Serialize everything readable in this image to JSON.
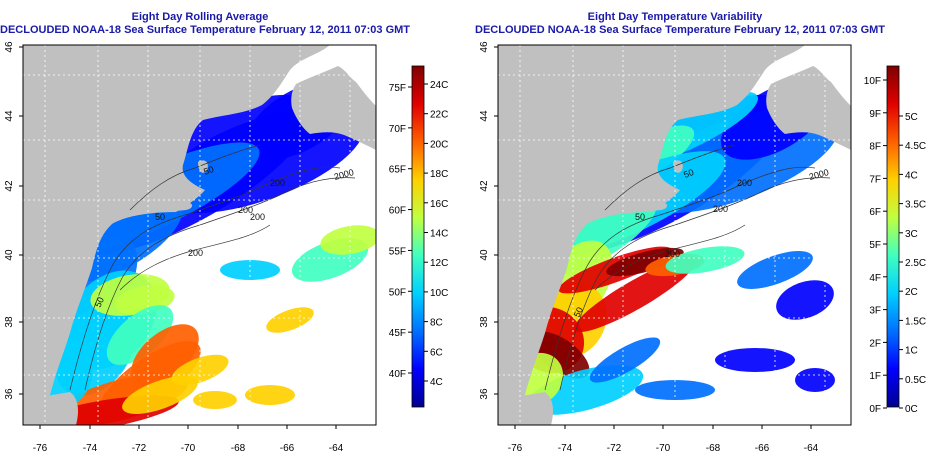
{
  "panels": [
    {
      "id": "left",
      "title": "Eight Day Rolling Average",
      "subtitle": "DECLOUDED NOAA-18 Sea Surface Temperature February 12, 2011 07:03 GMT",
      "x_ticks": [
        "-76",
        "-74",
        "-72",
        "-70",
        "-68",
        "-66",
        "-64"
      ],
      "y_ticks": [
        "36",
        "38",
        "40",
        "42",
        "44",
        "46"
      ],
      "contour_labels": [
        "2000",
        "200",
        "200",
        "200",
        "200",
        "50",
        "50",
        "50"
      ],
      "colorbar": {
        "type": "temperature",
        "colors": [
          "#00008f",
          "#0000ff",
          "#0070ff",
          "#00d0ff",
          "#40ffc0",
          "#c0ff40",
          "#ffd000",
          "#ff6000",
          "#e00000",
          "#800000"
        ],
        "left_labels": [
          "40F",
          "45F",
          "50F",
          "55F",
          "60F",
          "65F",
          "70F",
          "75F"
        ],
        "right_labels": [
          "4C",
          "6C",
          "8C",
          "10C",
          "12C",
          "14C",
          "16C",
          "18C",
          "20C",
          "22C",
          "24C"
        ]
      }
    },
    {
      "id": "right",
      "title": "Eight Day Temperature Variability",
      "subtitle": "DECLOUDED NOAA-18 Sea Surface Temperature February 12, 2011 07:03 GMT",
      "x_ticks": [
        "-76",
        "-74",
        "-72",
        "-70",
        "-68",
        "-66",
        "-64"
      ],
      "y_ticks": [
        "36",
        "38",
        "40",
        "42",
        "44",
        "46"
      ],
      "contour_labels": [
        "2000",
        "200",
        "200",
        "200",
        "50",
        "50",
        "50"
      ],
      "colorbar": {
        "type": "variability",
        "colors": [
          "#00008f",
          "#0000ff",
          "#0070ff",
          "#00d0ff",
          "#40ffc0",
          "#c0ff40",
          "#ffd000",
          "#ff6000",
          "#e00000",
          "#800000"
        ],
        "left_labels": [
          "0F",
          "1F",
          "2F",
          "3F",
          "4F",
          "5F",
          "6F",
          "7F",
          "8F",
          "9F",
          "10F"
        ],
        "right_labels": [
          "0C",
          "0.5C",
          "1C",
          "1.5C",
          "2C",
          "2.5C",
          "3C",
          "3.5C",
          "4C",
          "4.5C",
          "5C"
        ]
      }
    }
  ],
  "colors": {
    "land": "#c0c0c0",
    "title": "#1a1aa8",
    "grid": "#ffffff",
    "contour": "#333333"
  }
}
